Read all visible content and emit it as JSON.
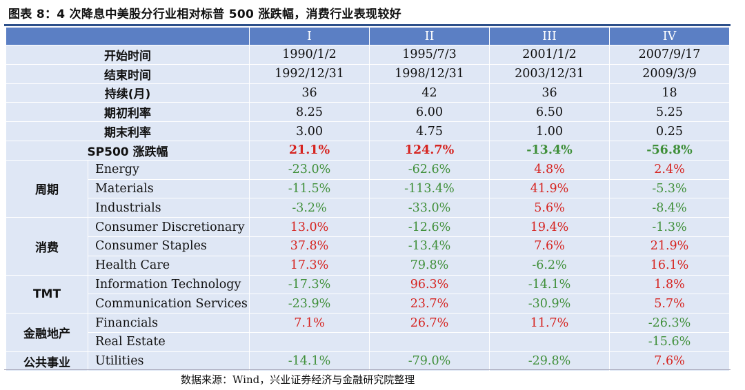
{
  "title": "图表 8：4 次降息中美股分行业相对标普 500 涨跌幅，消费行业表现较好",
  "columns": [
    "I",
    "II",
    "III",
    "IV"
  ],
  "summary_rows": [
    {
      "label": "开始时间",
      "values": [
        "1990/1/2",
        "1995/7/3",
        "2001/1/2",
        "2007/9/17"
      ]
    },
    {
      "label": "结束时间",
      "values": [
        "1992/12/31",
        "1998/12/31",
        "2003/12/31",
        "2009/3/9"
      ]
    },
    {
      "label": "持续(月)",
      "values": [
        "36",
        "42",
        "36",
        "18"
      ]
    },
    {
      "label": "期初利率",
      "values": [
        "8.25",
        "6.00",
        "6.50",
        "5.25"
      ]
    },
    {
      "label": "期末利率",
      "values": [
        "3.00",
        "4.75",
        "1.00",
        "0.25"
      ]
    }
  ],
  "sp500_row": {
    "label": "SP500 涨跌幅",
    "values": [
      "21.1%",
      "124.7%",
      "-13.4%",
      "-56.8%"
    ]
  },
  "groups": [
    {
      "name": "周期",
      "sectors": [
        {
          "name": "Energy",
          "values": [
            "-23.0%",
            "-62.6%",
            "4.8%",
            "2.4%"
          ]
        },
        {
          "name": "Materials",
          "values": [
            "-11.5%",
            "-113.4%",
            "41.9%",
            "-5.3%"
          ]
        },
        {
          "name": "Industrials",
          "values": [
            "-3.2%",
            "-33.0%",
            "5.6%",
            "-8.4%"
          ]
        }
      ]
    },
    {
      "name": "消费",
      "sectors": [
        {
          "name": "Consumer Discretionary",
          "values": [
            "13.0%",
            "-12.6%",
            "19.4%",
            "-1.3%"
          ]
        },
        {
          "name": "Consumer Staples",
          "values": [
            "37.8%",
            "-13.4%",
            "7.6%",
            "21.9%"
          ]
        },
        {
          "name": "Health Care",
          "values": [
            "17.3%",
            "79.8%",
            "-6.2%",
            "16.1%"
          ]
        }
      ]
    },
    {
      "name": "TMT",
      "sectors": [
        {
          "name": "Information Technology",
          "values": [
            "-17.3%",
            "96.3%",
            "-14.1%",
            "1.8%"
          ]
        },
        {
          "name": "Communication Services",
          "values": [
            "-23.9%",
            "23.7%",
            "-30.9%",
            "5.7%"
          ]
        }
      ]
    },
    {
      "name": "金融地产",
      "sectors": [
        {
          "name": "Financials",
          "values": [
            "7.1%",
            "26.7%",
            "11.7%",
            "-26.3%"
          ]
        },
        {
          "name": "Real Estate",
          "values": [
            "",
            "",
            "",
            "-15.6%"
          ]
        }
      ]
    },
    {
      "name": "公共事业",
      "sectors": [
        {
          "name": "Utilities",
          "values": [
            "-14.1%",
            "-79.0%",
            "-29.8%",
            "7.6%"
          ]
        }
      ]
    }
  ],
  "colors": {
    "header_bg": "#5b7fc4",
    "cell_bg": "#dfe7f5",
    "positive": "#d6231f",
    "negative": "#3f8f39"
  },
  "source": "数据来源：Wind，兴业证券经济与金融研究院整理"
}
